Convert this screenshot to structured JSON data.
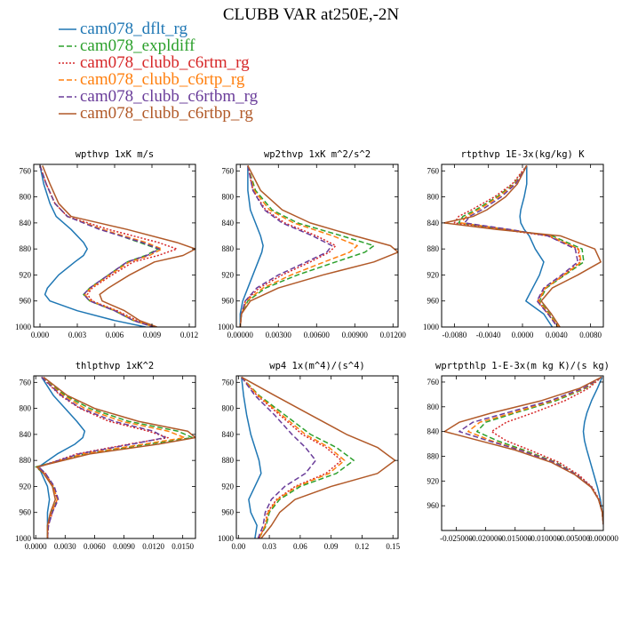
{
  "title": "CLUBB VAR at250E,-2N",
  "legend": [
    {
      "name": "cam078_dflt_rg",
      "color": "#1f77b4",
      "dash": "solid"
    },
    {
      "name": "cam078_expldiff",
      "color": "#2ca02c",
      "dash": "dashed"
    },
    {
      "name": "cam078_clubb_c6rtm_rg",
      "color": "#d62728",
      "dash": "dotted"
    },
    {
      "name": "cam078_clubb_c6rtp_rg",
      "color": "#ff7f0e",
      "dash": "dashed"
    },
    {
      "name": "cam078_clubb_c6rtbm_rg",
      "color": "#6a3d9a",
      "dash": "dashed"
    },
    {
      "name": "cam078_clubb_c6rtbp_rg",
      "color": "#b15928",
      "dash": "solid"
    }
  ],
  "chart_data": [
    {
      "type": "line",
      "title": "wpthvp   1xK m/s",
      "xlim": [
        -0.0005,
        0.0125
      ],
      "ylim": [
        1000,
        750
      ],
      "xticks": [
        0.0,
        0.003,
        0.006,
        0.009,
        0.012
      ],
      "xtick_labels": [
        "0.000",
        "0.003",
        "0.006",
        "0.009",
        "0.012"
      ],
      "yticks": [
        760,
        800,
        840,
        880,
        920,
        960,
        1000
      ],
      "y": [
        752,
        780,
        810,
        830,
        850,
        870,
        880,
        890,
        900,
        920,
        940,
        950,
        960,
        975,
        990,
        1000
      ],
      "series": [
        {
          "name": "cam078_dflt_rg",
          "values": [
            0.0,
            0.0003,
            0.0008,
            0.0013,
            0.0025,
            0.0035,
            0.0038,
            0.0035,
            0.0028,
            0.0015,
            0.0006,
            0.0004,
            0.0008,
            0.003,
            0.006,
            0.0085
          ]
        },
        {
          "name": "cam078_expldiff",
          "values": [
            0.0,
            0.0005,
            0.0012,
            0.0022,
            0.005,
            0.008,
            0.0095,
            0.0085,
            0.007,
            0.0055,
            0.004,
            0.0035,
            0.004,
            0.006,
            0.0075,
            0.0092
          ]
        },
        {
          "name": "cam078_clubb_c6rtm_rg",
          "values": [
            0.0,
            0.0005,
            0.0012,
            0.0022,
            0.0055,
            0.0095,
            0.011,
            0.0095,
            0.0075,
            0.0058,
            0.0042,
            0.0038,
            0.0042,
            0.0062,
            0.0078,
            0.0093
          ]
        },
        {
          "name": "cam078_clubb_c6rtp_rg",
          "values": [
            0.0,
            0.0005,
            0.0012,
            0.0022,
            0.005,
            0.0085,
            0.0098,
            0.0088,
            0.0072,
            0.0056,
            0.0041,
            0.0036,
            0.0041,
            0.0061,
            0.0076,
            0.0092
          ]
        },
        {
          "name": "cam078_clubb_c6rtbm_rg",
          "values": [
            0.0,
            0.0005,
            0.0012,
            0.0022,
            0.0048,
            0.0082,
            0.0096,
            0.0086,
            0.007,
            0.0055,
            0.004,
            0.0035,
            0.004,
            0.006,
            0.0075,
            0.0091
          ]
        },
        {
          "name": "cam078_clubb_c6rtbp_rg",
          "values": [
            0.0002,
            0.0008,
            0.0015,
            0.0025,
            0.007,
            0.011,
            0.0125,
            0.0115,
            0.0092,
            0.0072,
            0.0055,
            0.0048,
            0.005,
            0.0068,
            0.008,
            0.0094
          ]
        }
      ]
    },
    {
      "type": "line",
      "title": "wp2thvp   1xK m^2/s^2",
      "xlim": [
        -0.0003,
        0.0124
      ],
      "ylim": [
        1000,
        750
      ],
      "xticks": [
        0.0,
        0.003,
        0.006,
        0.009,
        0.012
      ],
      "xtick_labels": [
        "0.00000",
        "0.00300",
        "0.00600",
        "0.00900",
        "0.01200"
      ],
      "yticks": [
        760,
        800,
        840,
        880,
        920,
        960,
        1000
      ],
      "y": [
        752,
        790,
        820,
        840,
        860,
        875,
        885,
        900,
        920,
        940,
        960,
        980,
        1000
      ],
      "series": [
        {
          "name": "cam078_dflt_rg",
          "values": [
            0.0006,
            0.0006,
            0.0008,
            0.0012,
            0.0016,
            0.0018,
            0.0017,
            0.0014,
            0.001,
            0.0006,
            0.0002,
            0.0,
            0.0
          ]
        },
        {
          "name": "cam078_expldiff",
          "values": [
            0.0006,
            0.0012,
            0.0025,
            0.0045,
            0.008,
            0.0105,
            0.0098,
            0.0075,
            0.0045,
            0.002,
            0.0006,
            0.0001,
            0.0
          ]
        },
        {
          "name": "cam078_clubb_c6rtm_rg",
          "values": [
            0.0006,
            0.001,
            0.002,
            0.0035,
            0.006,
            0.0075,
            0.007,
            0.0055,
            0.0033,
            0.0015,
            0.0004,
            0.0001,
            0.0
          ]
        },
        {
          "name": "cam078_clubb_c6rtp_rg",
          "values": [
            0.0006,
            0.0011,
            0.0023,
            0.0042,
            0.0073,
            0.0092,
            0.0086,
            0.0066,
            0.004,
            0.0018,
            0.0005,
            0.0001,
            0.0
          ]
        },
        {
          "name": "cam078_clubb_c6rtbm_rg",
          "values": [
            0.0006,
            0.001,
            0.0019,
            0.0033,
            0.0057,
            0.0072,
            0.0068,
            0.0052,
            0.003,
            0.0013,
            0.0004,
            0.0001,
            0.0
          ]
        },
        {
          "name": "cam078_clubb_c6rtbp_rg",
          "values": [
            0.0006,
            0.0016,
            0.0033,
            0.0055,
            0.009,
            0.0118,
            0.0124,
            0.0105,
            0.0065,
            0.003,
            0.0008,
            0.0001,
            0.0
          ]
        }
      ]
    },
    {
      "type": "line",
      "title": "rtpthvp   1E-3x(kg/kg) K",
      "xlim": [
        -0.0095,
        0.0095
      ],
      "ylim": [
        1000,
        750
      ],
      "xticks": [
        -0.008,
        -0.004,
        0.0,
        0.004,
        0.008
      ],
      "xtick_labels": [
        "-0.0080",
        "-0.0040",
        "0.0000",
        "0.0040",
        "0.0080"
      ],
      "yticks": [
        760,
        800,
        840,
        880,
        920,
        960,
        1000
      ],
      "y": [
        752,
        780,
        800,
        820,
        830,
        840,
        850,
        860,
        880,
        900,
        920,
        940,
        960,
        980,
        1000
      ],
      "series": [
        {
          "name": "cam078_dflt_rg",
          "values": [
            0.0005,
            0.0005,
            0.0002,
            -0.0002,
            -0.0003,
            -0.0002,
            0.0002,
            0.0008,
            0.0015,
            0.0025,
            0.002,
            0.0012,
            0.0004,
            0.0025,
            0.0035
          ]
        },
        {
          "name": "cam078_expldiff",
          "values": [
            0.0005,
            -0.001,
            -0.003,
            -0.0055,
            -0.007,
            -0.0075,
            -0.002,
            0.0035,
            0.007,
            0.0072,
            0.005,
            0.0028,
            0.002,
            0.0032,
            0.0042
          ]
        },
        {
          "name": "cam078_clubb_c6rtm_rg",
          "values": [
            0.0005,
            -0.0012,
            -0.0033,
            -0.006,
            -0.0075,
            -0.008,
            -0.0025,
            0.003,
            0.0065,
            0.0068,
            0.0048,
            0.0026,
            0.0018,
            0.003,
            0.0042
          ]
        },
        {
          "name": "cam078_clubb_c6rtp_rg",
          "values": [
            0.0005,
            -0.0009,
            -0.0028,
            -0.0052,
            -0.0066,
            -0.0072,
            -0.0018,
            0.0032,
            0.0066,
            0.0069,
            0.0049,
            0.0027,
            0.0019,
            0.0031,
            0.0042
          ]
        },
        {
          "name": "cam078_clubb_c6rtbm_rg",
          "values": [
            0.0005,
            -0.0008,
            -0.0025,
            -0.0048,
            -0.0062,
            -0.0068,
            -0.0015,
            0.003,
            0.0062,
            0.0065,
            0.0046,
            0.0025,
            0.0017,
            0.003,
            0.0041
          ]
        },
        {
          "name": "cam078_clubb_c6rtbp_rg",
          "values": [
            0.0005,
            -0.0006,
            -0.002,
            -0.0042,
            -0.0058,
            -0.0092,
            -0.003,
            0.0045,
            0.0085,
            0.0092,
            0.0065,
            0.0035,
            0.0022,
            0.0034,
            0.0044
          ]
        }
      ]
    },
    {
      "type": "line",
      "title": "thlpthvp   1xK^2",
      "xlim": [
        -0.0002,
        0.0163
      ],
      "ylim": [
        1000,
        750
      ],
      "xticks": [
        0.0,
        0.003,
        0.006,
        0.009,
        0.012,
        0.015
      ],
      "xtick_labels": [
        "0.0000",
        "0.0030",
        "0.0060",
        "0.0090",
        "0.0120",
        "0.0150"
      ],
      "yticks": [
        760,
        800,
        840,
        880,
        920,
        960,
        1000
      ],
      "y": [
        752,
        780,
        800,
        820,
        835,
        845,
        855,
        870,
        890,
        900,
        920,
        940,
        960,
        980,
        1000
      ],
      "series": [
        {
          "name": "cam078_dflt_rg",
          "values": [
            0.0006,
            0.0018,
            0.003,
            0.0042,
            0.005,
            0.0048,
            0.004,
            0.0022,
            0.0003,
            0.0006,
            0.0012,
            0.0014,
            0.0012,
            0.0012,
            0.0012
          ]
        },
        {
          "name": "cam078_expldiff",
          "values": [
            0.0006,
            0.003,
            0.0055,
            0.0095,
            0.0145,
            0.016,
            0.0115,
            0.005,
            0.0,
            0.0008,
            0.0018,
            0.0022,
            0.0016,
            0.0012,
            0.0012
          ]
        },
        {
          "name": "cam078_clubb_c6rtm_rg",
          "values": [
            0.0006,
            0.0025,
            0.0045,
            0.0075,
            0.0115,
            0.0135,
            0.0095,
            0.0042,
            0.0003,
            0.001,
            0.0018,
            0.0022,
            0.0017,
            0.0013,
            0.0012
          ]
        },
        {
          "name": "cam078_clubb_c6rtp_rg",
          "values": [
            0.0006,
            0.0028,
            0.005,
            0.0088,
            0.0135,
            0.0152,
            0.011,
            0.0048,
            0.0002,
            0.0009,
            0.0018,
            0.0022,
            0.0016,
            0.0012,
            0.0012
          ]
        },
        {
          "name": "cam078_clubb_c6rtbm_rg",
          "values": [
            0.0006,
            0.0026,
            0.0046,
            0.008,
            0.012,
            0.0132,
            0.0098,
            0.0044,
            0.0003,
            0.001,
            0.0019,
            0.0023,
            0.0017,
            0.0013,
            0.0012
          ]
        },
        {
          "name": "cam078_clubb_c6rtbp_rg",
          "values": [
            0.0008,
            0.0032,
            0.006,
            0.0105,
            0.0155,
            0.0163,
            0.0125,
            0.0055,
            0.0001,
            0.0008,
            0.0017,
            0.002,
            0.0015,
            0.0012,
            0.0012
          ]
        }
      ]
    },
    {
      "type": "line",
      "title": "wp4   1x(m^4)/(s^4)",
      "xlim": [
        -0.002,
        0.155
      ],
      "ylim": [
        1000,
        750
      ],
      "xticks": [
        0.0,
        0.03,
        0.06,
        0.09,
        0.12,
        0.15
      ],
      "xtick_labels": [
        "0.00",
        "0.03",
        "0.06",
        "0.09",
        "0.12",
        "0.15"
      ],
      "yticks": [
        760,
        800,
        840,
        880,
        920,
        960,
        1000
      ],
      "y": [
        752,
        780,
        810,
        840,
        860,
        880,
        900,
        920,
        940,
        960,
        980,
        1000
      ],
      "series": [
        {
          "name": "cam078_dflt_rg",
          "values": [
            0.003,
            0.005,
            0.008,
            0.012,
            0.016,
            0.02,
            0.022,
            0.016,
            0.01,
            0.012,
            0.018,
            0.016
          ]
        },
        {
          "name": "cam078_expldiff",
          "values": [
            0.003,
            0.02,
            0.045,
            0.07,
            0.095,
            0.112,
            0.095,
            0.06,
            0.04,
            0.03,
            0.027,
            0.02
          ]
        },
        {
          "name": "cam078_clubb_c6rtm_rg",
          "values": [
            0.003,
            0.018,
            0.04,
            0.062,
            0.085,
            0.1,
            0.085,
            0.055,
            0.037,
            0.028,
            0.026,
            0.02
          ]
        },
        {
          "name": "cam078_clubb_c6rtp_rg",
          "values": [
            0.003,
            0.019,
            0.042,
            0.065,
            0.088,
            0.103,
            0.088,
            0.057,
            0.038,
            0.029,
            0.026,
            0.02
          ]
        },
        {
          "name": "cam078_clubb_c6rtbm_rg",
          "values": [
            0.003,
            0.016,
            0.035,
            0.052,
            0.065,
            0.075,
            0.065,
            0.045,
            0.032,
            0.026,
            0.024,
            0.019
          ]
        },
        {
          "name": "cam078_clubb_c6rtbp_rg",
          "values": [
            0.003,
            0.035,
            0.07,
            0.105,
            0.135,
            0.152,
            0.135,
            0.09,
            0.055,
            0.04,
            0.032,
            0.022
          ]
        }
      ]
    },
    {
      "type": "line",
      "title": "wprtpthlp   1-E-3x(m kg K)/(s kg)",
      "xlim": [
        -0.0275,
        0.0
      ],
      "ylim": [
        1000,
        750
      ],
      "xticks": [
        -0.025,
        -0.02,
        -0.015,
        -0.01,
        -0.005,
        0.0
      ],
      "xtick_labels": [
        "-0.025000",
        "-0.020000",
        "-0.015000",
        "-0.010000",
        "-0.005000",
        "0.000000"
      ],
      "yticks": [
        760,
        800,
        840,
        880,
        920,
        960
      ],
      "y": [
        752,
        770,
        790,
        810,
        825,
        840,
        855,
        870,
        890,
        910,
        930,
        950,
        970,
        990
      ],
      "series": [
        {
          "name": "cam078_dflt_rg",
          "values": [
            -0.0002,
            -0.001,
            -0.002,
            -0.0028,
            -0.0032,
            -0.0034,
            -0.0032,
            -0.0028,
            -0.0022,
            -0.0016,
            -0.001,
            -0.0005,
            -0.0002,
            0.0
          ]
        },
        {
          "name": "cam078_expldiff",
          "values": [
            -0.0003,
            -0.003,
            -0.008,
            -0.015,
            -0.02,
            -0.0215,
            -0.018,
            -0.0135,
            -0.008,
            -0.0045,
            -0.002,
            -0.0008,
            -0.0002,
            0.0
          ]
        },
        {
          "name": "cam078_clubb_c6rtm_rg",
          "values": [
            -0.0003,
            -0.0025,
            -0.0065,
            -0.012,
            -0.0165,
            -0.019,
            -0.0165,
            -0.0125,
            -0.0075,
            -0.0042,
            -0.0019,
            -0.0007,
            -0.0002,
            0.0
          ]
        },
        {
          "name": "cam078_clubb_c6rtp_rg",
          "values": [
            -0.0003,
            -0.0032,
            -0.0085,
            -0.0155,
            -0.021,
            -0.023,
            -0.019,
            -0.014,
            -0.0082,
            -0.0046,
            -0.002,
            -0.0008,
            -0.0002,
            0.0
          ]
        },
        {
          "name": "cam078_clubb_c6rtbm_rg",
          "values": [
            -0.0003,
            -0.0034,
            -0.009,
            -0.0165,
            -0.0222,
            -0.0245,
            -0.0195,
            -0.0142,
            -0.0083,
            -0.0046,
            -0.002,
            -0.0008,
            -0.0002,
            0.0
          ]
        },
        {
          "name": "cam078_clubb_c6rtbp_rg",
          "values": [
            -0.0003,
            -0.004,
            -0.0105,
            -0.019,
            -0.0245,
            -0.027,
            -0.021,
            -0.015,
            -0.0088,
            -0.0048,
            -0.0021,
            -0.0008,
            -0.0002,
            0.0
          ]
        }
      ]
    }
  ]
}
